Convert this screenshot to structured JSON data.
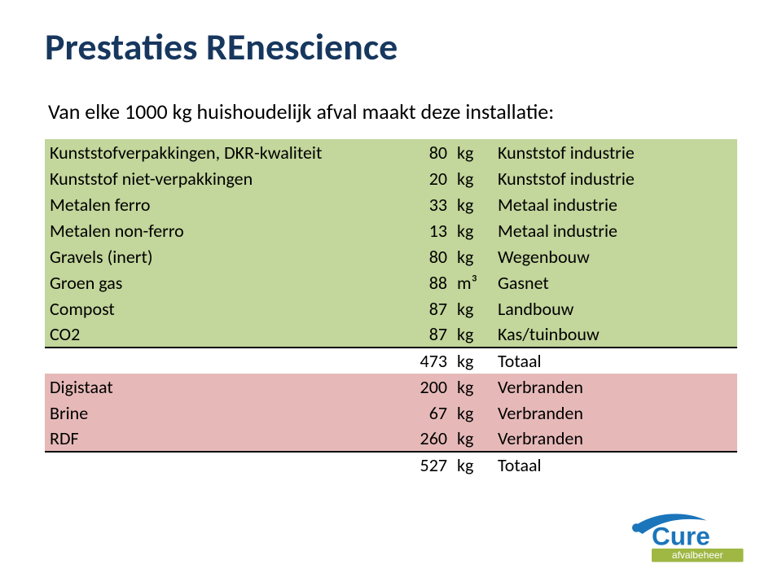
{
  "title": "Prestaties REnescience",
  "subtitle": "Van elke 1000 kg huishoudelijk afval maakt deze installatie:",
  "rows": [
    {
      "label": "Kunststofverpakkingen, DKR-kwaliteit",
      "value": "80",
      "unit": "kg",
      "dest": "Kunststof industrie",
      "band": "green"
    },
    {
      "label": "Kunststof niet-verpakkingen",
      "value": "20",
      "unit": "kg",
      "dest": "Kunststof industrie",
      "band": "green"
    },
    {
      "label": "Metalen ferro",
      "value": "33",
      "unit": "kg",
      "dest": "Metaal industrie",
      "band": "green"
    },
    {
      "label": "Metalen non-ferro",
      "value": "13",
      "unit": "kg",
      "dest": "Metaal industrie",
      "band": "green"
    },
    {
      "label": "Gravels (inert)",
      "value": "80",
      "unit": "kg",
      "dest": "Wegenbouw",
      "band": "green"
    },
    {
      "label": "Groen gas",
      "value": "88",
      "unit": "m³",
      "dest": "Gasnet",
      "band": "green"
    },
    {
      "label": "Compost",
      "value": "87",
      "unit": "kg",
      "dest": "Landbouw",
      "band": "green"
    },
    {
      "label": "CO2",
      "value": "87",
      "unit": "kg",
      "dest": "Kas/tuinbouw",
      "band": "green"
    },
    {
      "label": "",
      "value": "473",
      "unit": "kg",
      "dest": "Totaal",
      "band": "none",
      "subtotal": true
    },
    {
      "label": "Digistaat",
      "value": "200",
      "unit": "kg",
      "dest": "Verbranden",
      "band": "red"
    },
    {
      "label": "Brine",
      "value": "67",
      "unit": "kg",
      "dest": "Verbranden",
      "band": "red"
    },
    {
      "label": "RDF",
      "value": "260",
      "unit": "kg",
      "dest": "Verbranden",
      "band": "red"
    },
    {
      "label": "",
      "value": "527",
      "unit": "kg",
      "dest": "Totaal",
      "band": "none",
      "subtotal": true
    }
  ],
  "logo": {
    "text_main": "Cure",
    "text_sub": "afvalbeheer",
    "swoosh_color": "#1b75bb",
    "bar_color": "#9fb743"
  },
  "colors": {
    "title": "#17375e",
    "band_green": "#c3d69b",
    "band_red": "#e6b9b8"
  }
}
